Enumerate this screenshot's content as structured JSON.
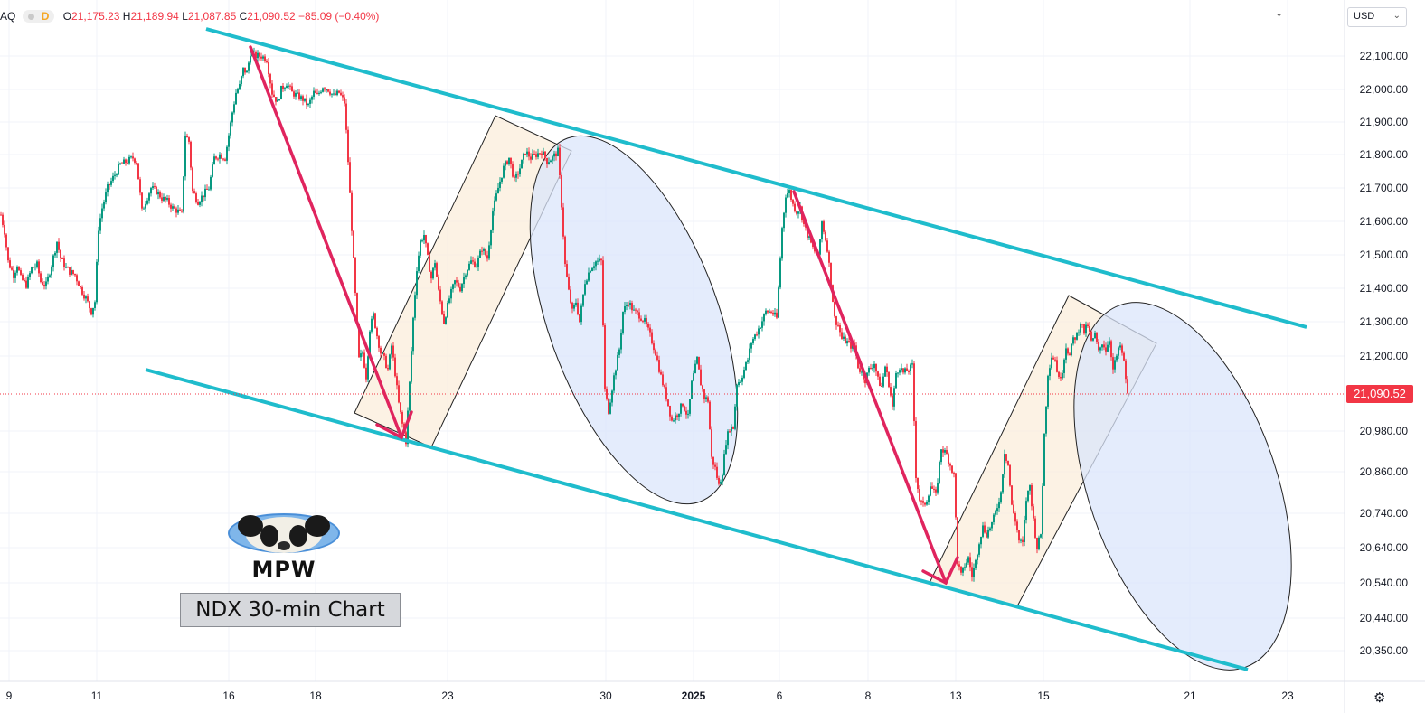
{
  "symbol_fragment": "AQ",
  "interval_badge": "D",
  "ohlc": {
    "o_label": "O",
    "o_value": "21,175.23",
    "h_label": "H",
    "h_value": "21,189.94",
    "l_label": "L",
    "l_value": "21,087.85",
    "c_label": "C",
    "c_value": "21,090.52",
    "change": "−85.09 (−0.40%)"
  },
  "currency": "USD",
  "current_price_label": "21,090.52",
  "watermark": {
    "brand": "MPW",
    "caption": "NDX 30-min Chart"
  },
  "colors": {
    "up": "#089981",
    "down": "#f23645",
    "channel": "#1fbccc",
    "arrow": "#e0245e",
    "impulse_box": "#fbeedb",
    "ellipse_fill": "#dbe6fb"
  },
  "icons": [
    "settings-gear-icon",
    "chevron-down-icon",
    "panda-logo-icon"
  ],
  "chart_data": {
    "type": "candlestick",
    "y_axis": {
      "position": "right",
      "ticks": [
        {
          "label": "22,100.00",
          "value": 22100
        },
        {
          "label": "22,000.00",
          "value": 22000
        },
        {
          "label": "21,900.00",
          "value": 21900
        },
        {
          "label": "21,800.00",
          "value": 21800
        },
        {
          "label": "21,700.00",
          "value": 21700
        },
        {
          "label": "21,600.00",
          "value": 21600
        },
        {
          "label": "21,500.00",
          "value": 21500
        },
        {
          "label": "21,400.00",
          "value": 21400
        },
        {
          "label": "21,300.00",
          "value": 21300
        },
        {
          "label": "21,200.00",
          "value": 21200
        },
        {
          "label": "20,980.00",
          "value": 20980
        },
        {
          "label": "20,860.00",
          "value": 20860
        },
        {
          "label": "20,740.00",
          "value": 20740
        },
        {
          "label": "20,640.00",
          "value": 20640
        },
        {
          "label": "20,540.00",
          "value": 20540
        },
        {
          "label": "20,440.00",
          "value": 20440
        },
        {
          "label": "20,350.00",
          "value": 20350
        }
      ]
    },
    "x_axis": {
      "ticks": [
        {
          "label": "9",
          "bold": false
        },
        {
          "label": "11",
          "bold": false
        },
        {
          "label": "16",
          "bold": false
        },
        {
          "label": "18",
          "bold": false
        },
        {
          "label": "23",
          "bold": false
        },
        {
          "label": "30",
          "bold": false
        },
        {
          "label": "2025",
          "bold": true
        },
        {
          "label": "6",
          "bold": false
        },
        {
          "label": "8",
          "bold": false
        },
        {
          "label": "13",
          "bold": false
        },
        {
          "label": "15",
          "bold": false
        },
        {
          "label": "21",
          "bold": false
        },
        {
          "label": "23",
          "bold": false
        }
      ]
    },
    "last_close": 21090.52,
    "price_path": [
      [
        0,
        21620
      ],
      [
        4,
        21570
      ],
      [
        8,
        21480
      ],
      [
        14,
        21440
      ],
      [
        18,
        21470
      ],
      [
        22,
        21430
      ],
      [
        28,
        21410
      ],
      [
        34,
        21460
      ],
      [
        40,
        21470
      ],
      [
        44,
        21420
      ],
      [
        50,
        21410
      ],
      [
        56,
        21470
      ],
      [
        62,
        21540
      ],
      [
        66,
        21490
      ],
      [
        72,
        21460
      ],
      [
        76,
        21450
      ],
      [
        82,
        21440
      ],
      [
        88,
        21400
      ],
      [
        94,
        21370
      ],
      [
        100,
        21330
      ],
      [
        104,
        21360
      ],
      [
        108,
        21580
      ],
      [
        112,
        21640
      ],
      [
        118,
        21700
      ],
      [
        124,
        21730
      ],
      [
        132,
        21770
      ],
      [
        140,
        21780
      ],
      [
        146,
        21790
      ],
      [
        150,
        21780
      ],
      [
        156,
        21630
      ],
      [
        160,
        21660
      ],
      [
        166,
        21700
      ],
      [
        172,
        21690
      ],
      [
        178,
        21670
      ],
      [
        184,
        21660
      ],
      [
        190,
        21640
      ],
      [
        196,
        21630
      ],
      [
        200,
        21620
      ],
      [
        204,
        21860
      ],
      [
        208,
        21840
      ],
      [
        212,
        21690
      ],
      [
        218,
        21660
      ],
      [
        224,
        21680
      ],
      [
        230,
        21700
      ],
      [
        236,
        21790
      ],
      [
        242,
        21800
      ],
      [
        248,
        21790
      ],
      [
        252,
        21860
      ],
      [
        256,
        21930
      ],
      [
        260,
        21990
      ],
      [
        264,
        22010
      ],
      [
        268,
        22060
      ],
      [
        272,
        22050
      ],
      [
        276,
        22110
      ],
      [
        282,
        22100
      ],
      [
        288,
        22100
      ],
      [
        294,
        22090
      ],
      [
        300,
        21990
      ],
      [
        306,
        21960
      ],
      [
        310,
        22000
      ],
      [
        316,
        22020
      ],
      [
        322,
        21990
      ],
      [
        328,
        21980
      ],
      [
        334,
        21970
      ],
      [
        340,
        21950
      ],
      [
        346,
        21990
      ],
      [
        350,
        21980
      ],
      [
        356,
        22010
      ],
      [
        362,
        22000
      ],
      [
        368,
        21980
      ],
      [
        374,
        21990
      ],
      [
        380,
        21960
      ],
      [
        384,
        21780
      ],
      [
        388,
        21580
      ],
      [
        392,
        21380
      ],
      [
        396,
        21190
      ],
      [
        400,
        21210
      ],
      [
        404,
        21140
      ],
      [
        408,
        21280
      ],
      [
        412,
        21320
      ],
      [
        416,
        21260
      ],
      [
        420,
        21210
      ],
      [
        424,
        21190
      ],
      [
        428,
        21160
      ],
      [
        432,
        21230
      ],
      [
        436,
        21150
      ],
      [
        440,
        21060
      ],
      [
        444,
        21000
      ],
      [
        448,
        20950
      ],
      [
        452,
        21120
      ],
      [
        456,
        21310
      ],
      [
        460,
        21460
      ],
      [
        464,
        21540
      ],
      [
        468,
        21560
      ],
      [
        472,
        21490
      ],
      [
        476,
        21430
      ],
      [
        480,
        21480
      ],
      [
        484,
        21390
      ],
      [
        490,
        21300
      ],
      [
        496,
        21370
      ],
      [
        502,
        21420
      ],
      [
        508,
        21400
      ],
      [
        514,
        21450
      ],
      [
        520,
        21480
      ],
      [
        526,
        21470
      ],
      [
        532,
        21520
      ],
      [
        538,
        21490
      ],
      [
        544,
        21630
      ],
      [
        550,
        21700
      ],
      [
        556,
        21760
      ],
      [
        562,
        21790
      ],
      [
        568,
        21720
      ],
      [
        574,
        21760
      ],
      [
        580,
        21810
      ],
      [
        586,
        21790
      ],
      [
        592,
        21800
      ],
      [
        598,
        21810
      ],
      [
        604,
        21780
      ],
      [
        610,
        21790
      ],
      [
        616,
        21810
      ],
      [
        620,
        21650
      ],
      [
        624,
        21470
      ],
      [
        628,
        21390
      ],
      [
        632,
        21330
      ],
      [
        636,
        21360
      ],
      [
        640,
        21300
      ],
      [
        646,
        21420
      ],
      [
        652,
        21460
      ],
      [
        658,
        21480
      ],
      [
        664,
        21480
      ],
      [
        668,
        21100
      ],
      [
        672,
        21040
      ],
      [
        678,
        21140
      ],
      [
        684,
        21220
      ],
      [
        688,
        21330
      ],
      [
        694,
        21360
      ],
      [
        700,
        21330
      ],
      [
        706,
        21320
      ],
      [
        712,
        21300
      ],
      [
        718,
        21260
      ],
      [
        724,
        21210
      ],
      [
        730,
        21140
      ],
      [
        736,
        21080
      ],
      [
        742,
        21010
      ],
      [
        748,
        21030
      ],
      [
        754,
        21060
      ],
      [
        760,
        21020
      ],
      [
        764,
        21120
      ],
      [
        770,
        21190
      ],
      [
        774,
        21120
      ],
      [
        778,
        21080
      ],
      [
        782,
        21070
      ],
      [
        786,
        20900
      ],
      [
        790,
        20870
      ],
      [
        794,
        20820
      ],
      [
        798,
        20860
      ],
      [
        802,
        20950
      ],
      [
        806,
        20990
      ],
      [
        810,
        20990
      ],
      [
        814,
        21120
      ],
      [
        818,
        21130
      ],
      [
        822,
        21160
      ],
      [
        826,
        21190
      ],
      [
        830,
        21240
      ],
      [
        836,
        21270
      ],
      [
        840,
        21290
      ],
      [
        846,
        21330
      ],
      [
        852,
        21330
      ],
      [
        858,
        21310
      ],
      [
        864,
        21580
      ],
      [
        868,
        21680
      ],
      [
        872,
        21690
      ],
      [
        876,
        21650
      ],
      [
        880,
        21630
      ],
      [
        884,
        21640
      ],
      [
        888,
        21590
      ],
      [
        892,
        21560
      ],
      [
        898,
        21520
      ],
      [
        904,
        21490
      ],
      [
        908,
        21600
      ],
      [
        914,
        21520
      ],
      [
        918,
        21420
      ],
      [
        922,
        21310
      ],
      [
        926,
        21290
      ],
      [
        930,
        21250
      ],
      [
        936,
        21240
      ],
      [
        940,
        21230
      ],
      [
        944,
        21230
      ],
      [
        948,
        21170
      ],
      [
        952,
        21150
      ],
      [
        956,
        21130
      ],
      [
        960,
        21160
      ],
      [
        966,
        21180
      ],
      [
        970,
        21130
      ],
      [
        974,
        21110
      ],
      [
        978,
        21170
      ],
      [
        982,
        21120
      ],
      [
        986,
        21050
      ],
      [
        990,
        21150
      ],
      [
        994,
        21170
      ],
      [
        998,
        21150
      ],
      [
        1004,
        21160
      ],
      [
        1008,
        21170
      ],
      [
        1012,
        20850
      ],
      [
        1016,
        20780
      ],
      [
        1020,
        20760
      ],
      [
        1024,
        20780
      ],
      [
        1028,
        20820
      ],
      [
        1034,
        20790
      ],
      [
        1040,
        20930
      ],
      [
        1046,
        20910
      ],
      [
        1050,
        20880
      ],
      [
        1054,
        20850
      ],
      [
        1058,
        20600
      ],
      [
        1062,
        20560
      ],
      [
        1066,
        20590
      ],
      [
        1070,
        20610
      ],
      [
        1074,
        20560
      ],
      [
        1078,
        20600
      ],
      [
        1082,
        20660
      ],
      [
        1086,
        20700
      ],
      [
        1090,
        20680
      ],
      [
        1096,
        20710
      ],
      [
        1100,
        20740
      ],
      [
        1106,
        20800
      ],
      [
        1110,
        20920
      ],
      [
        1114,
        20880
      ],
      [
        1118,
        20760
      ],
      [
        1122,
        20720
      ],
      [
        1126,
        20660
      ],
      [
        1130,
        20650
      ],
      [
        1134,
        20780
      ],
      [
        1138,
        20820
      ],
      [
        1142,
        20720
      ],
      [
        1146,
        20640
      ],
      [
        1150,
        20680
      ],
      [
        1154,
        20970
      ],
      [
        1158,
        21150
      ],
      [
        1162,
        21200
      ],
      [
        1166,
        21190
      ],
      [
        1170,
        21130
      ],
      [
        1174,
        21160
      ],
      [
        1178,
        21230
      ],
      [
        1182,
        21200
      ],
      [
        1186,
        21250
      ],
      [
        1190,
        21260
      ],
      [
        1194,
        21300
      ],
      [
        1198,
        21270
      ],
      [
        1202,
        21290
      ],
      [
        1206,
        21240
      ],
      [
        1210,
        21260
      ],
      [
        1214,
        21210
      ],
      [
        1218,
        21240
      ],
      [
        1222,
        21220
      ],
      [
        1226,
        21250
      ],
      [
        1230,
        21160
      ],
      [
        1234,
        21200
      ],
      [
        1238,
        21230
      ],
      [
        1242,
        21180
      ],
      [
        1246,
        21091
      ]
    ]
  }
}
